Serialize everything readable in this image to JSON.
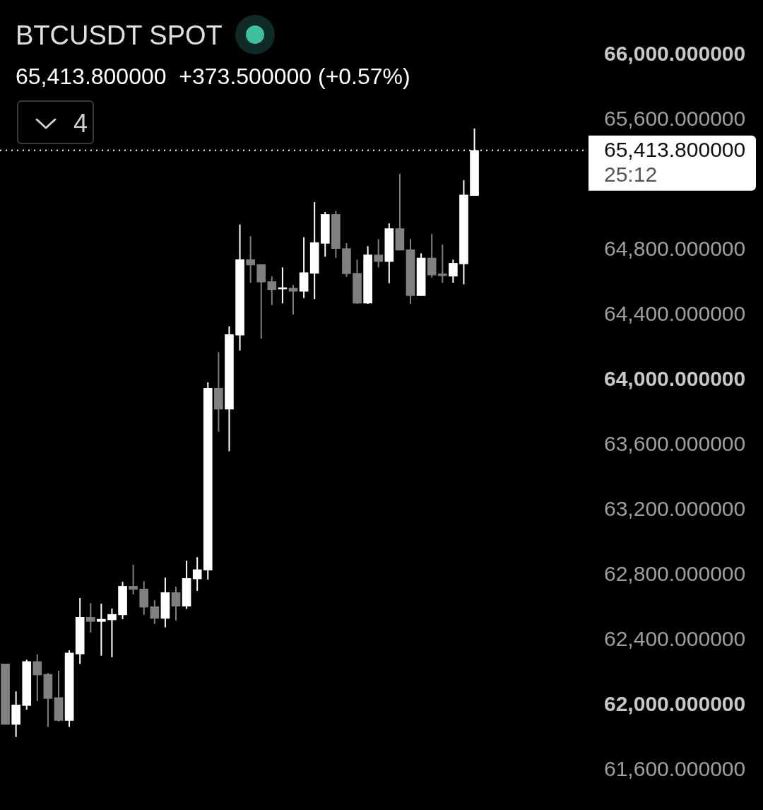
{
  "chart_data": {
    "type": "candlestick",
    "title": "BTCUSDT SPOT",
    "subtitle": "65,413.800000  +373.500000 (+0.57%)",
    "annotations": [
      "25:12",
      "4"
    ],
    "categories": [
      null,
      null,
      null,
      null,
      null,
      null,
      null,
      null,
      null,
      null,
      null,
      null,
      null,
      null,
      null,
      null,
      null,
      null,
      null,
      null,
      null,
      null,
      null,
      null,
      null,
      null,
      null,
      null,
      null,
      null,
      null,
      null,
      null,
      null,
      null,
      null,
      null,
      null,
      null,
      null,
      null,
      null,
      null,
      null,
      null,
      null,
      null,
      null,
      null,
      null,
      null,
      null,
      null,
      null,
      null
    ],
    "ohlc": [
      [
        62255,
        62255,
        61883,
        61883
      ],
      [
        61883,
        62086,
        61806,
        62003
      ],
      [
        61999,
        62281,
        61974,
        62270
      ],
      [
        62270,
        62314,
        62026,
        62187
      ],
      [
        62191,
        62199,
        61868,
        62042
      ],
      [
        62048,
        62213,
        61901,
        61907
      ],
      [
        61907,
        62339,
        61868,
        62322
      ],
      [
        62316,
        62661,
        62255,
        62542
      ],
      [
        62542,
        62629,
        62448,
        62516
      ],
      [
        62516,
        62626,
        62306,
        62530
      ],
      [
        62526,
        62596,
        62296,
        62560
      ],
      [
        62557,
        62760,
        62530,
        62733
      ],
      [
        62733,
        62865,
        62683,
        62713
      ],
      [
        62716,
        62764,
        62557,
        62604
      ],
      [
        62607,
        62647,
        62501,
        62535
      ],
      [
        62535,
        62786,
        62480,
        62694
      ],
      [
        62694,
        62730,
        62523,
        62610
      ],
      [
        62610,
        62890,
        62593,
        62781
      ],
      [
        62778,
        62912,
        62704,
        62835
      ],
      [
        62832,
        63987,
        62774,
        63951
      ],
      [
        63951,
        64173,
        63684,
        63822
      ],
      [
        63822,
        64332,
        63564,
        64281
      ],
      [
        64277,
        64958,
        64183,
        64742
      ],
      [
        64742,
        64886,
        64600,
        64709
      ],
      [
        64712,
        64712,
        64257,
        64604
      ],
      [
        64607,
        64639,
        64462,
        64557
      ],
      [
        64561,
        64694,
        64473,
        64568
      ],
      [
        64567,
        64586,
        64404,
        64547
      ],
      [
        64547,
        64880,
        64506,
        64662
      ],
      [
        64658,
        65096,
        64499,
        64847
      ],
      [
        64842,
        65035,
        64760,
        65020
      ],
      [
        65020,
        65042,
        64752,
        64810
      ],
      [
        64810,
        64843,
        64636,
        64655
      ],
      [
        64658,
        64742,
        64470,
        64474
      ],
      [
        64474,
        64825,
        64470,
        64771
      ],
      [
        64771,
        64868,
        64694,
        64730
      ],
      [
        64730,
        64965,
        64597,
        64933
      ],
      [
        64933,
        65270,
        64800,
        64800
      ],
      [
        64803,
        64868,
        64470,
        64520
      ],
      [
        64520,
        64781,
        64520,
        64752
      ],
      [
        64752,
        64900,
        64632,
        64647
      ],
      [
        64655,
        64835,
        64600,
        64643
      ],
      [
        64640,
        64742,
        64600,
        64720
      ],
      [
        64716,
        65230,
        64590,
        65140
      ],
      [
        65136,
        65549,
        65136,
        65413.8
      ],
      null,
      null,
      null,
      null,
      null,
      null,
      null,
      null,
      null,
      null
    ],
    "colors": [
      "#808080",
      "#ffffff",
      "#ffffff",
      "#808080",
      "#808080",
      "#808080",
      "#ffffff",
      "#ffffff",
      "#808080",
      "#ffffff",
      "#ffffff",
      "#ffffff",
      "#808080",
      "#808080",
      "#808080",
      "#ffffff",
      "#808080",
      "#ffffff",
      "#ffffff",
      "#ffffff",
      "#808080",
      "#ffffff",
      "#ffffff",
      "#808080",
      "#808080",
      "#808080",
      "#ffffff",
      "#808080",
      "#ffffff",
      "#ffffff",
      "#ffffff",
      "#808080",
      "#808080",
      "#808080",
      "#ffffff",
      "#808080",
      "#ffffff",
      "#808080",
      "#808080",
      "#ffffff",
      "#808080",
      "#808080",
      "#ffffff",
      "#ffffff",
      "#ffffff",
      null,
      null,
      null,
      null,
      null,
      null,
      null,
      null,
      null,
      null
    ],
    "ylim": [
      61600,
      66000
    ],
    "yticks": [
      {
        "value": 61600,
        "label": "61,600.000000"
      },
      {
        "value": 62000,
        "label": "62,000.000000"
      },
      {
        "value": 62400,
        "label": "62,400.000000"
      },
      {
        "value": 62800,
        "label": "62,800.000000"
      },
      {
        "value": 63200,
        "label": "63,200.000000"
      },
      {
        "value": 63600,
        "label": "63,600.000000"
      },
      {
        "value": 64000,
        "label": "64,000.000000"
      },
      {
        "value": 64400,
        "label": "64,400.000000"
      },
      {
        "value": 64800,
        "label": "64,800.000000"
      },
      {
        "value": 65600,
        "label": "65,600.000000"
      },
      {
        "value": 66000,
        "label": "66,000.000000"
      }
    ],
    "ref_lines": [
      {
        "axis": "y",
        "value": 65413.8,
        "label": "65,413.800000",
        "color": "#ffffff",
        "line_style": "dotted"
      }
    ],
    "tick_labels": "y"
  }
}
